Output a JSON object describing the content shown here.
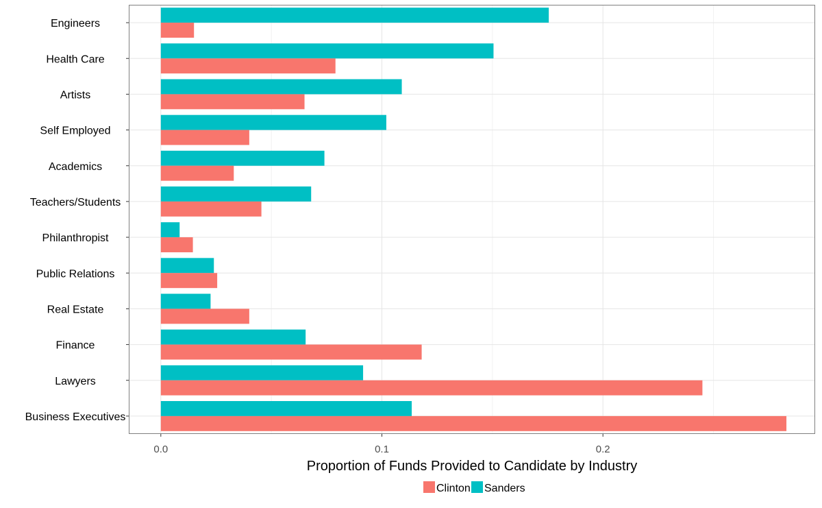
{
  "chart_data": {
    "type": "bar",
    "orientation": "horizontal",
    "categories": [
      "Engineers",
      "Health Care",
      "Artists",
      "Self Employed",
      "Academics",
      "Teachers/Students",
      "Philanthropist",
      "Public Relations",
      "Real Estate",
      "Finance",
      "Lawyers",
      "Business Executives"
    ],
    "series": [
      {
        "name": "Clinton",
        "color": "#F8766D",
        "values": [
          0.015,
          0.079,
          0.065,
          0.04,
          0.033,
          0.0455,
          0.0145,
          0.0255,
          0.04,
          0.118,
          0.245,
          0.283
        ]
      },
      {
        "name": "Sanders",
        "color": "#00BFC4",
        "values": [
          0.1755,
          0.1505,
          0.109,
          0.102,
          0.074,
          0.068,
          0.0085,
          0.024,
          0.0225,
          0.0655,
          0.0915,
          0.1135
        ]
      }
    ],
    "xlabel": "Proportion of Funds Provided to Candidate by Industry",
    "ylabel": "",
    "xlim": [
      -0.0145,
      0.296
    ],
    "x_ticks": [
      0.0,
      0.1,
      0.2
    ],
    "x_tick_labels": [
      "0.0",
      "0.1",
      "0.2"
    ],
    "grid": true,
    "legend_position": "bottom"
  }
}
